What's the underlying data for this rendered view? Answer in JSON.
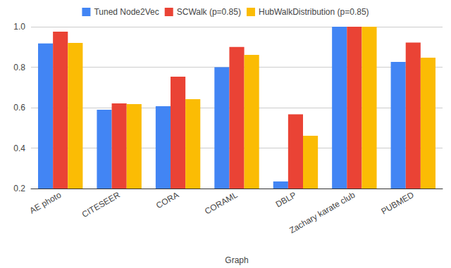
{
  "chart_data": {
    "type": "bar",
    "x_label": "Graph",
    "categories": [
      "AE photo",
      "CITESEER",
      "CORA",
      "CORAML",
      "DBLP",
      "Zachary karate club",
      "PUBMED"
    ],
    "series": [
      {
        "name": "Tuned Node2Vec",
        "color": "#4285f4",
        "values": [
          0.917,
          0.59,
          0.607,
          0.8,
          0.235,
          1.0,
          0.826
        ]
      },
      {
        "name": "SCWalk (p=0.85)",
        "color": "#ea4335",
        "values": [
          0.976,
          0.621,
          0.753,
          0.9,
          0.567,
          1.0,
          0.922
        ]
      },
      {
        "name": "HubWalkDistribution (p=0.85)",
        "color": "#fbbc04",
        "values": [
          0.92,
          0.617,
          0.642,
          0.861,
          0.461,
          1.0,
          0.847
        ]
      }
    ],
    "ylim": [
      0.2,
      1.0
    ],
    "yticks": [
      0.2,
      0.4,
      0.6,
      0.8,
      {
        "value": 1.0,
        "label": "1.0"
      }
    ],
    "grid": true,
    "legend": "top"
  }
}
